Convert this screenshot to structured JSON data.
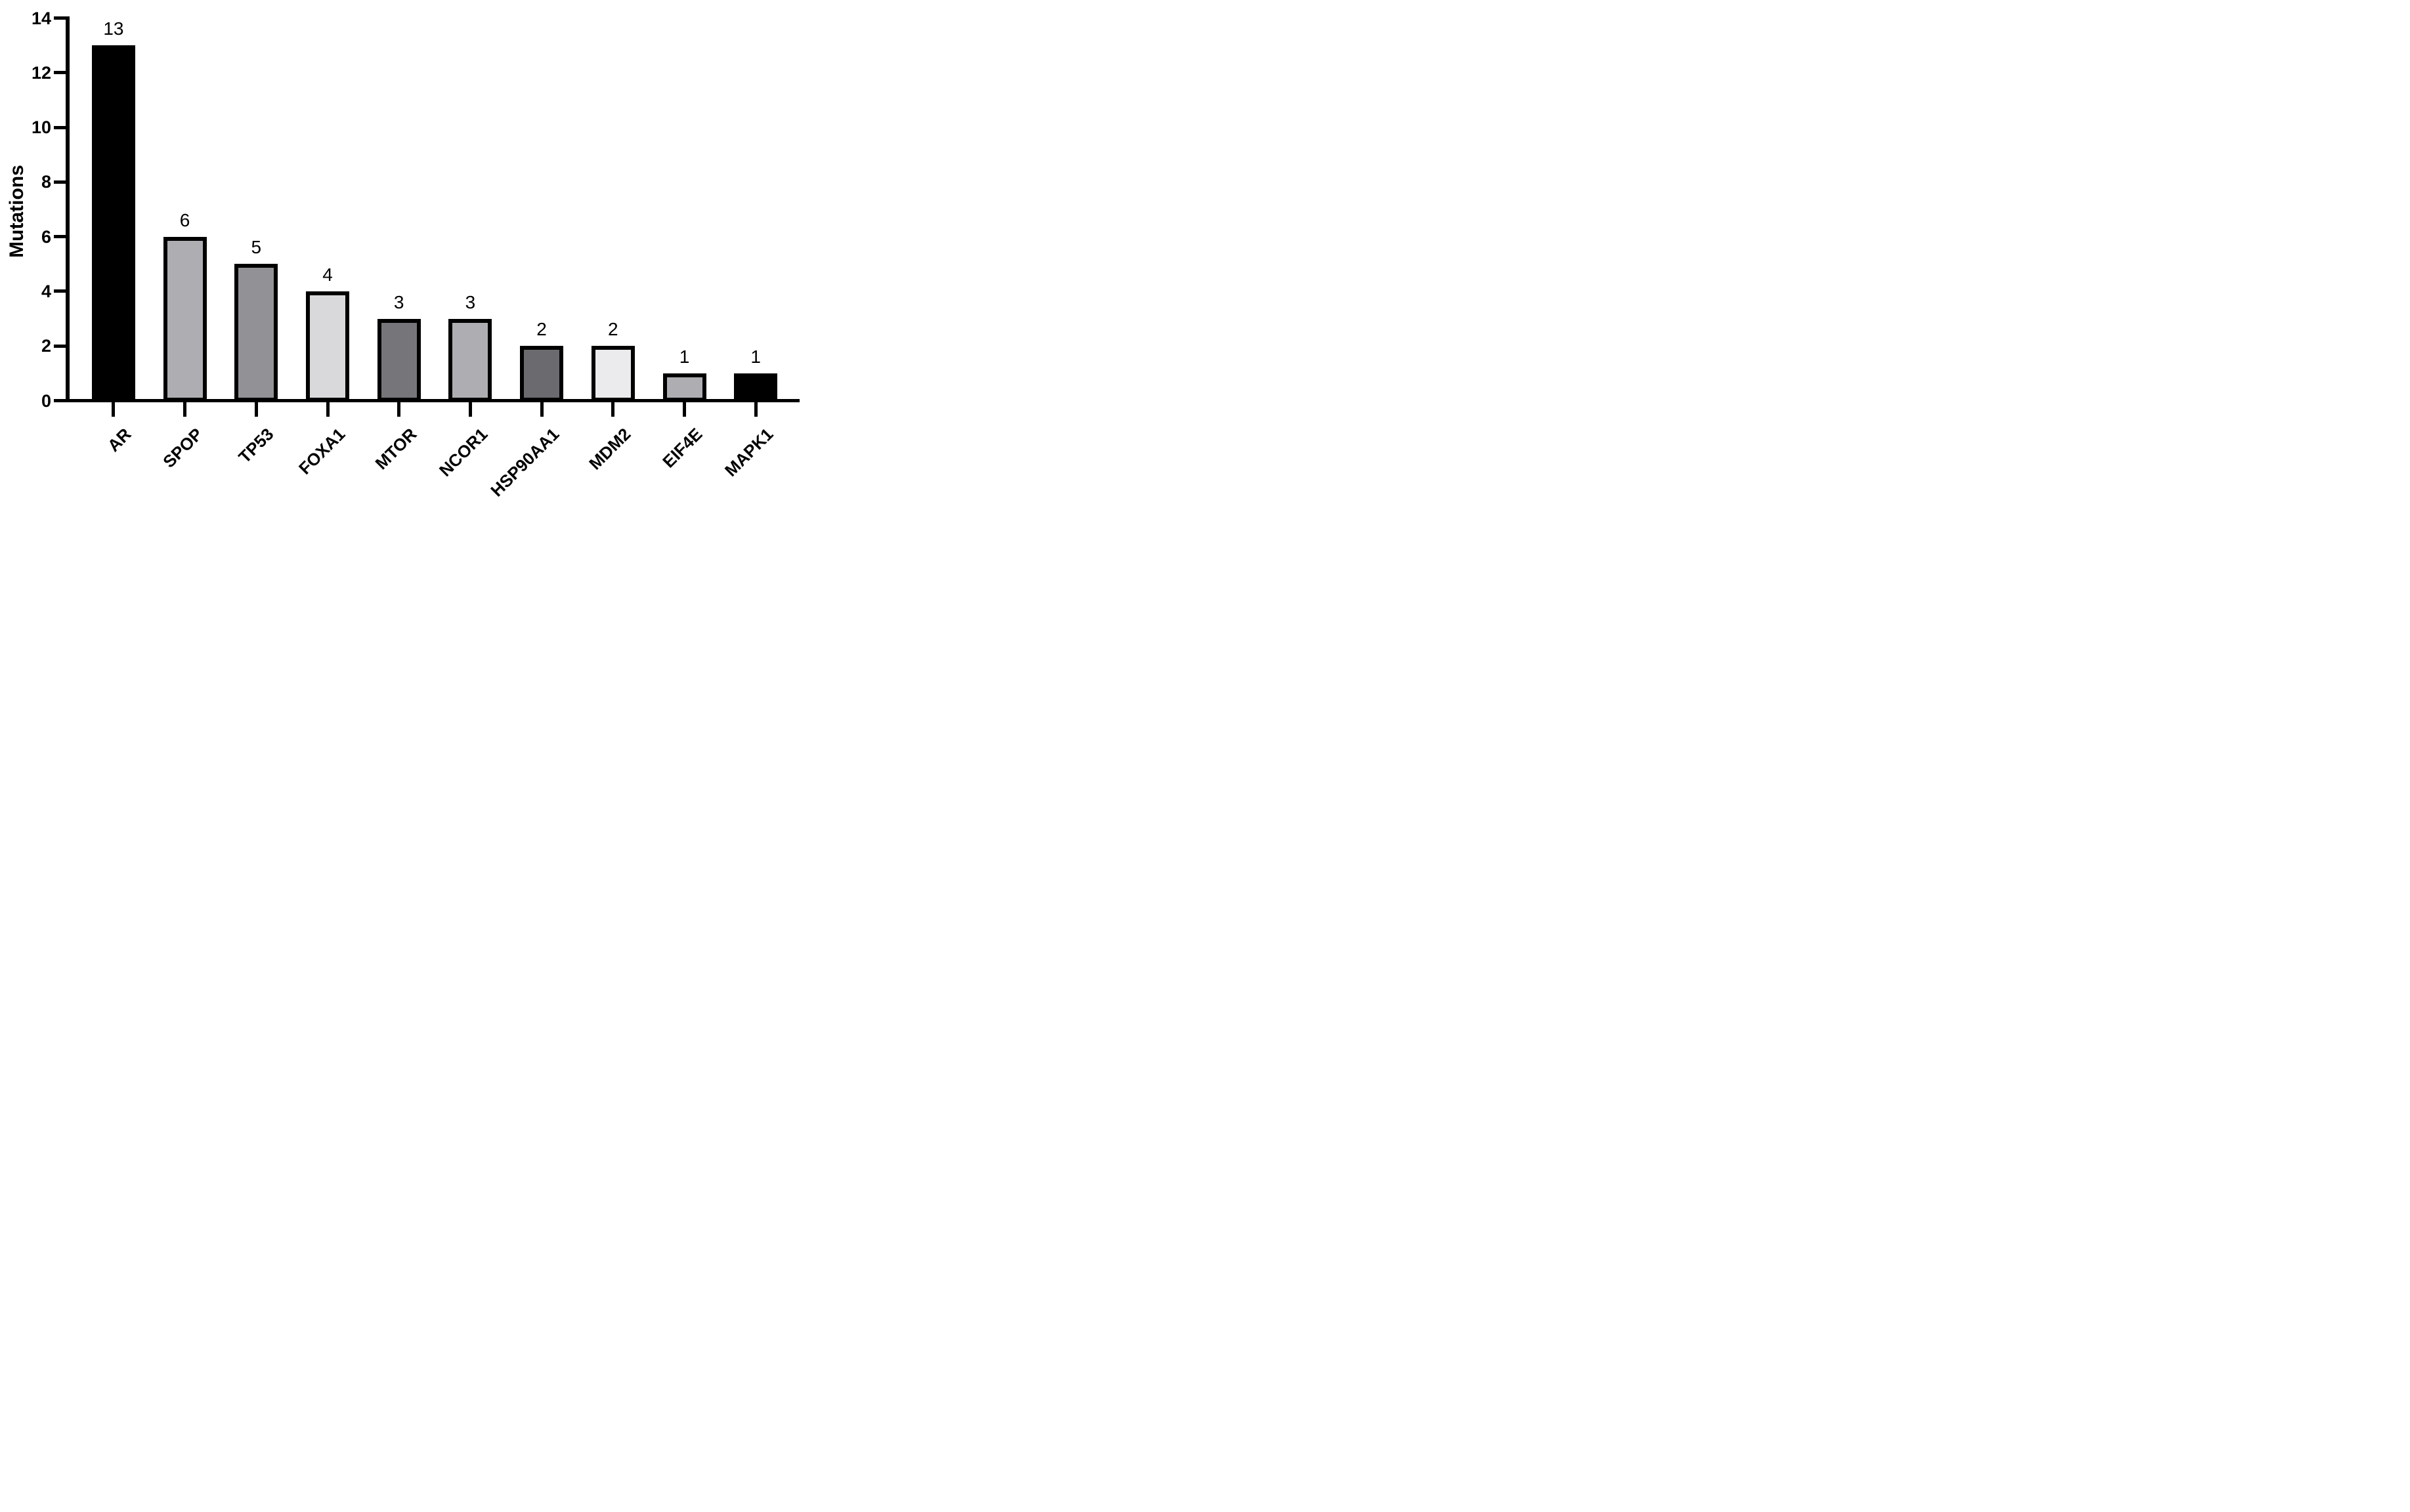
{
  "chart_data": {
    "type": "bar",
    "title": "",
    "xlabel": "",
    "ylabel": "Mutations",
    "categories": [
      "AR",
      "SPOP",
      "TP53",
      "FOXA1",
      "MTOR",
      "NCOR1",
      "HSP90AA1",
      "MDM2",
      "EIF4E",
      "MAPK1"
    ],
    "values": [
      13,
      6,
      5,
      4,
      3,
      3,
      2,
      2,
      1,
      1
    ],
    "value_labels": [
      "13",
      "6",
      "5",
      "4",
      "3",
      "3",
      "2",
      "2",
      "1",
      "1"
    ],
    "bar_fill_colors": [
      "#000000",
      "#aeaeb2",
      "#929296",
      "#d9d9db",
      "#76767a",
      "#aeaeb2",
      "#6b6b6f",
      "#ebebed",
      "#aeaeb2",
      "#000000"
    ],
    "bar_border_color": "#000000",
    "axis_color": "#000000",
    "text_color": "#000000",
    "background_color": "#ffffff",
    "ylim": [
      0,
      14
    ],
    "yticks": [
      "0",
      "2",
      "4",
      "6",
      "8",
      "10",
      "12",
      "14"
    ],
    "grid": false,
    "legend": "none",
    "xtick_label_rotation_deg": 45,
    "value_labels_shown": true
  }
}
